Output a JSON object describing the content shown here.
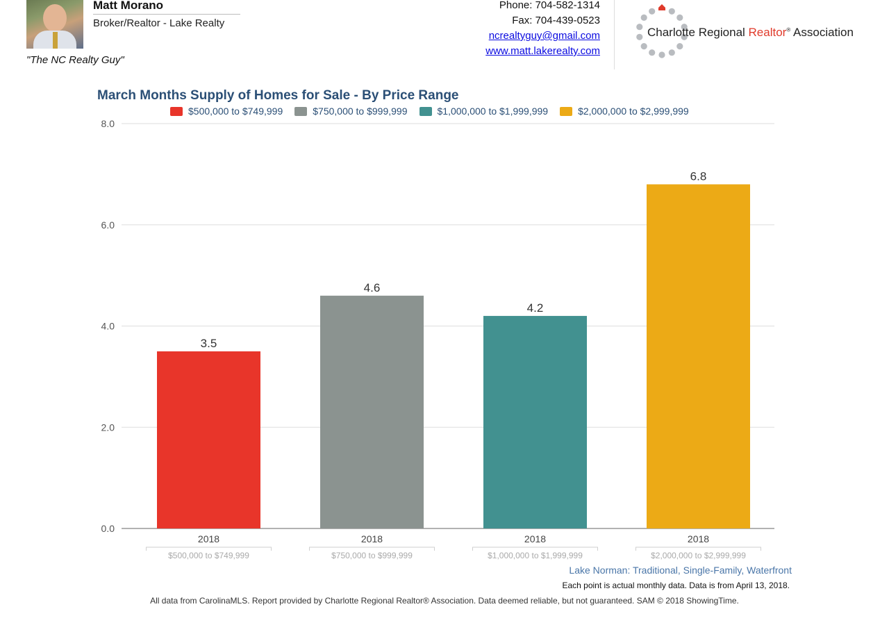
{
  "agent": {
    "name": "Matt Morano",
    "title": "Broker/Realtor - Lake Realty",
    "tagline": "\"The NC Realty Guy\""
  },
  "contact": {
    "phone": "Phone: 704-582-1314",
    "fax": "Fax: 704-439-0523",
    "email": "ncrealtyguy@gmail.com",
    "website": "www.matt.lakerealty.com"
  },
  "association_logo": {
    "name_part1": "Charlotte Regional ",
    "name_part2": "Realtor",
    "name_mark": "®",
    "name_part3": " Association"
  },
  "chart_data": {
    "type": "bar",
    "title": "March Months Supply of Homes for Sale - By Price Range",
    "categories": [
      "2018"
    ],
    "series": [
      {
        "name": "$500,000 to $749,999",
        "color": "#e8352a",
        "values": [
          3.5
        ]
      },
      {
        "name": "$750,000 to $999,999",
        "color": "#8b9390",
        "values": [
          4.6
        ]
      },
      {
        "name": "$1,000,000 to $1,999,999",
        "color": "#429190",
        "values": [
          4.2
        ]
      },
      {
        "name": "$2,000,000 to $2,999,999",
        "color": "#ecaa16",
        "values": [
          6.8
        ]
      }
    ],
    "data_labels": [
      "3.5",
      "4.6",
      "4.2",
      "6.8"
    ],
    "y_ticks": [
      "0.0",
      "2.0",
      "4.0",
      "6.0",
      "8.0"
    ],
    "ylim": [
      0,
      8
    ],
    "grid": true,
    "legend_position": "top"
  },
  "subtitle": "Lake Norman: Traditional, Single-Family, Waterfront",
  "note": "Each point is actual monthly data. Data is from April 13, 2018.",
  "footer": "All data from CarolinaMLS. Report provided by Charlotte Regional Realtor® Association. Data deemed reliable, but not guaranteed. SAM © 2018 ShowingTime."
}
